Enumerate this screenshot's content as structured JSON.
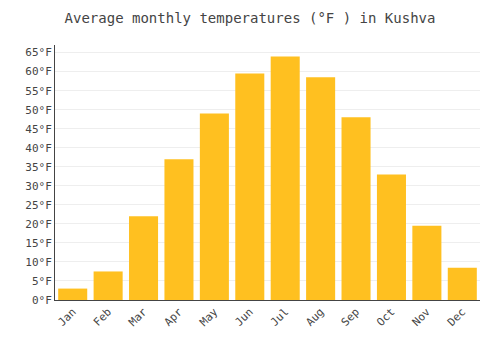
{
  "chart_data": {
    "type": "bar",
    "title": "Average monthly temperatures (°F ) in Kushva",
    "categories": [
      "Jan",
      "Feb",
      "Mar",
      "Apr",
      "May",
      "Jun",
      "Jul",
      "Aug",
      "Sep",
      "Oct",
      "Nov",
      "Dec"
    ],
    "values": [
      3,
      7.5,
      22,
      37,
      49,
      59.5,
      64,
      58.5,
      48,
      33,
      19.5,
      8.5
    ],
    "color": "#FFC020",
    "ylim": [
      0,
      67
    ],
    "yticks": [
      {
        "value": 0,
        "label": "0°F"
      },
      {
        "value": 5,
        "label": "5°F"
      },
      {
        "value": 10,
        "label": "10°F"
      },
      {
        "value": 15,
        "label": "15°F"
      },
      {
        "value": 20,
        "label": "20°F"
      },
      {
        "value": 25,
        "label": "25°F"
      },
      {
        "value": 30,
        "label": "30°F"
      },
      {
        "value": 35,
        "label": "35°F"
      },
      {
        "value": 40,
        "label": "40°F"
      },
      {
        "value": 45,
        "label": "45°F"
      },
      {
        "value": 50,
        "label": "50°F"
      },
      {
        "value": 55,
        "label": "55°F"
      },
      {
        "value": 60,
        "label": "60°F"
      },
      {
        "value": 65,
        "label": "65°F"
      }
    ],
    "grid": true
  }
}
